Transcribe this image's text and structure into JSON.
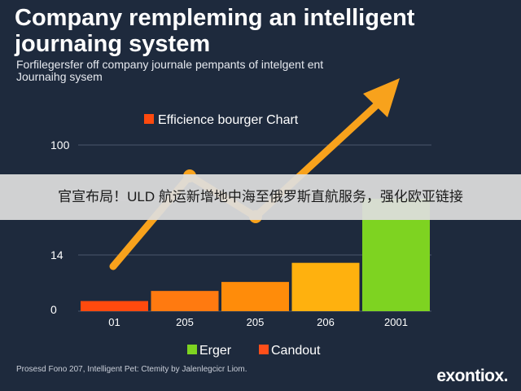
{
  "header": {
    "title": "Company rempleming an intelligent journaing system",
    "subtitle": "Forfilegersfer off company journale pempants of intelgent ent Journaihg sysem"
  },
  "banner": {
    "text": "官宣布局！ULD 航运新增地中海至俄罗斯直航服务，强化欧亚链接"
  },
  "footer": {
    "text": "Prosesd Fono 207, Intelligent Pet: Ctemity by Jalenlegcicr Liom.",
    "brand": "exontiox."
  },
  "colors": {
    "background": "#1e2a3d",
    "bar_colors": [
      "#ff4a0e",
      "#ff7a10",
      "#ff8c0a",
      "#ffb10e",
      "#7ed321"
    ],
    "trend_arrow": "#f8a21c",
    "legend_erger": "#7ed321",
    "legend_candout": "#ff4f1a"
  },
  "chart_data": {
    "type": "bar",
    "title": "Efficience bourger Chart",
    "categories": [
      "01",
      "205",
      "205",
      "206",
      "2001"
    ],
    "values": [
      9,
      18,
      26,
      43,
      100
    ],
    "y_ticks": [
      "100",
      "14",
      "0"
    ],
    "grid": true,
    "legend": {
      "position": "bottom",
      "entries": [
        {
          "label": "Erger",
          "color": "#7ed321"
        },
        {
          "label": "Candout",
          "color": "#ff4f1a"
        }
      ]
    },
    "trend_line": {
      "type": "arrow",
      "points": [
        [
          0,
          9
        ],
        [
          1,
          60
        ],
        [
          2,
          40
        ],
        [
          4,
          100
        ]
      ]
    }
  }
}
